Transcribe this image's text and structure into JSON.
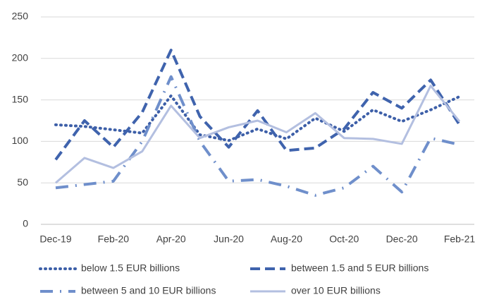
{
  "chart_data": {
    "type": "line",
    "categories": [
      "Dec-19",
      null,
      "Feb-20",
      null,
      "Apr-20",
      null,
      "Jun-20",
      null,
      "Aug-20",
      null,
      "Oct-20",
      null,
      "Dec-20",
      null,
      "Feb-21"
    ],
    "series": [
      {
        "name": "below 1.5 EUR billions",
        "color": "#3d5fa8",
        "dash": "dotted",
        "values": [
          120,
          118,
          114,
          110,
          155,
          108,
          101,
          115,
          103,
          128,
          112,
          138,
          124,
          138,
          154
        ]
      },
      {
        "name": "between 1.5 and 5 EUR billions",
        "color": "#3f63ad",
        "dash": "dashed",
        "values": [
          78,
          125,
          93,
          135,
          210,
          130,
          93,
          137,
          89,
          92,
          115,
          159,
          140,
          174,
          120
        ]
      },
      {
        "name": "between 5 and 10 EUR billions",
        "color": "#6f8fcb",
        "dash": "dash-dot",
        "values": [
          44,
          48,
          52,
          100,
          178,
          100,
          52,
          54,
          46,
          35,
          44,
          70,
          39,
          104,
          96
        ]
      },
      {
        "name": "over 10 EUR billions",
        "color": "#b3bfe0",
        "dash": "solid",
        "values": [
          50,
          80,
          68,
          88,
          143,
          104,
          117,
          125,
          111,
          134,
          104,
          103,
          97,
          167,
          124
        ]
      }
    ],
    "ylim": [
      0,
      250
    ],
    "yticks": [
      0,
      50,
      100,
      150,
      200,
      250
    ],
    "grid": true,
    "legend": "bottom"
  }
}
